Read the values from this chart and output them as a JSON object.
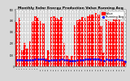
{
  "title": "Monthly Solar Energy Production Value Running Avg",
  "bar_color": "#ff0000",
  "line_color": "#0000ff",
  "background_color": "#d8d8d8",
  "plot_bg_color": "#d8d8d8",
  "grid_color": "#ffffff",
  "ylim": [
    0,
    500
  ],
  "values": [
    390,
    430,
    140,
    210,
    155,
    220,
    400,
    440,
    430,
    400,
    380,
    75,
    145,
    435,
    445,
    430,
    415,
    435,
    205,
    100,
    65,
    95,
    365,
    405,
    415,
    435,
    425,
    445,
    455,
    460,
    470,
    460,
    355,
    120,
    415,
    400,
    390,
    430,
    440,
    420,
    390,
    50
  ],
  "running_avg": [
    60,
    60,
    58,
    56,
    55,
    57,
    60,
    62,
    63,
    62,
    61,
    55,
    53,
    56,
    58,
    59,
    60,
    62,
    58,
    54,
    50,
    48,
    52,
    55,
    57,
    59,
    61,
    63,
    64,
    65,
    66,
    65,
    60,
    50,
    61,
    59,
    58,
    60,
    61,
    59,
    57,
    45
  ],
  "n_bars": 42,
  "title_fontsize": 3.2,
  "tick_fontsize": 2.0,
  "legend_fontsize": 2.5
}
